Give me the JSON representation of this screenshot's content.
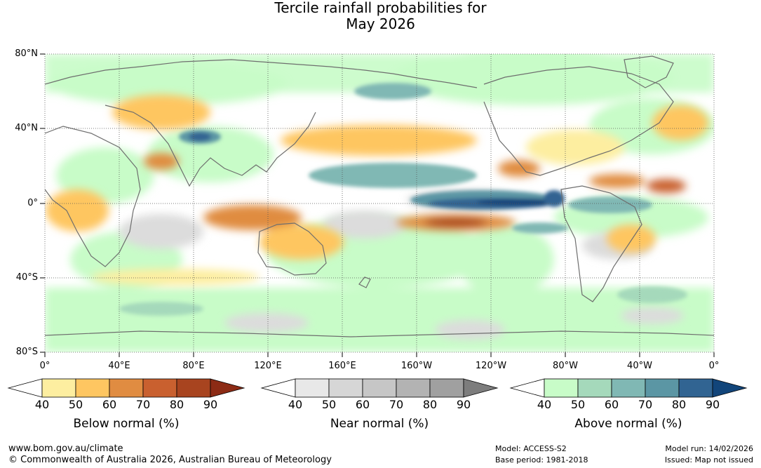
{
  "title": {
    "line1": "Tercile rainfall probabilities for",
    "line2": "May 2026"
  },
  "map": {
    "lat_labels": [
      "80°N",
      "40°N",
      "0°",
      "40°S",
      "80°S"
    ],
    "lon_labels": [
      "0°",
      "40°E",
      "80°E",
      "120°E",
      "160°E",
      "160°W",
      "120°W",
      "80°W",
      "40°W",
      "0°"
    ]
  },
  "legends": [
    {
      "title": "Below normal (%)",
      "ticks": [
        "40",
        "50",
        "60",
        "70",
        "80",
        "90"
      ],
      "colors": [
        "#ffffff",
        "#fdeea0",
        "#fec661",
        "#e08c41",
        "#c9602f",
        "#a8441f",
        "#8c2b15"
      ]
    },
    {
      "title": "Near normal (%)",
      "ticks": [
        "40",
        "50",
        "60",
        "70",
        "80",
        "90"
      ],
      "colors": [
        "#ffffff",
        "#e8e8e8",
        "#d6d6d6",
        "#c6c6c6",
        "#b3b3b3",
        "#a0a0a0",
        "#7d7d7d"
      ]
    },
    {
      "title": "Above normal (%)",
      "ticks": [
        "40",
        "50",
        "60",
        "70",
        "80",
        "90"
      ],
      "colors": [
        "#ffffff",
        "#c8fcc8",
        "#a5d9bb",
        "#80b8b4",
        "#5b96a4",
        "#316492",
        "#12457a"
      ]
    }
  ],
  "footer": {
    "url": "www.bom.gov.au/climate",
    "copyright": "© Commonwealth of Australia 2026, Australian Bureau of Meteorology",
    "model": "Model: ACCESS-S2",
    "base_period": "Base period: 1981-2018",
    "model_run": "Model run: 14/02/2026",
    "issued": "Issued: Map not issued"
  }
}
